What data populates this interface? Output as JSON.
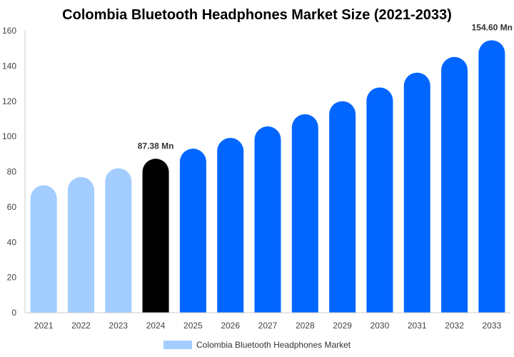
{
  "chart_data": {
    "type": "bar",
    "title": "Colombia Bluetooth Headphones Market Size (2021-2033)",
    "xlabel": "",
    "ylabel": "",
    "ylim": [
      0,
      160
    ],
    "yticks": [
      0,
      20,
      40,
      60,
      80,
      100,
      120,
      140,
      160
    ],
    "grid": false,
    "legend_position": "bottom",
    "categories": [
      "2021",
      "2022",
      "2023",
      "2024",
      "2025",
      "2026",
      "2027",
      "2028",
      "2029",
      "2030",
      "2031",
      "2032",
      "2033"
    ],
    "series": [
      {
        "name": "Colombia Bluetooth Headphones Market",
        "values": [
          72.3,
          77.0,
          82.0,
          87.38,
          93.1,
          99.2,
          105.7,
          112.6,
          120.0,
          127.8,
          136.2,
          145.1,
          154.6
        ],
        "colors": [
          "#a3cdff",
          "#a3cdff",
          "#a3cdff",
          "#000000",
          "#0066ff",
          "#0066ff",
          "#0066ff",
          "#0066ff",
          "#0066ff",
          "#0066ff",
          "#0066ff",
          "#0066ff",
          "#0066ff"
        ]
      }
    ],
    "data_labels": [
      {
        "category": "2024",
        "text": "87.38 Mn"
      },
      {
        "category": "2033",
        "text": "154.60 Mn"
      }
    ],
    "legend_color": "#a3cdff"
  }
}
